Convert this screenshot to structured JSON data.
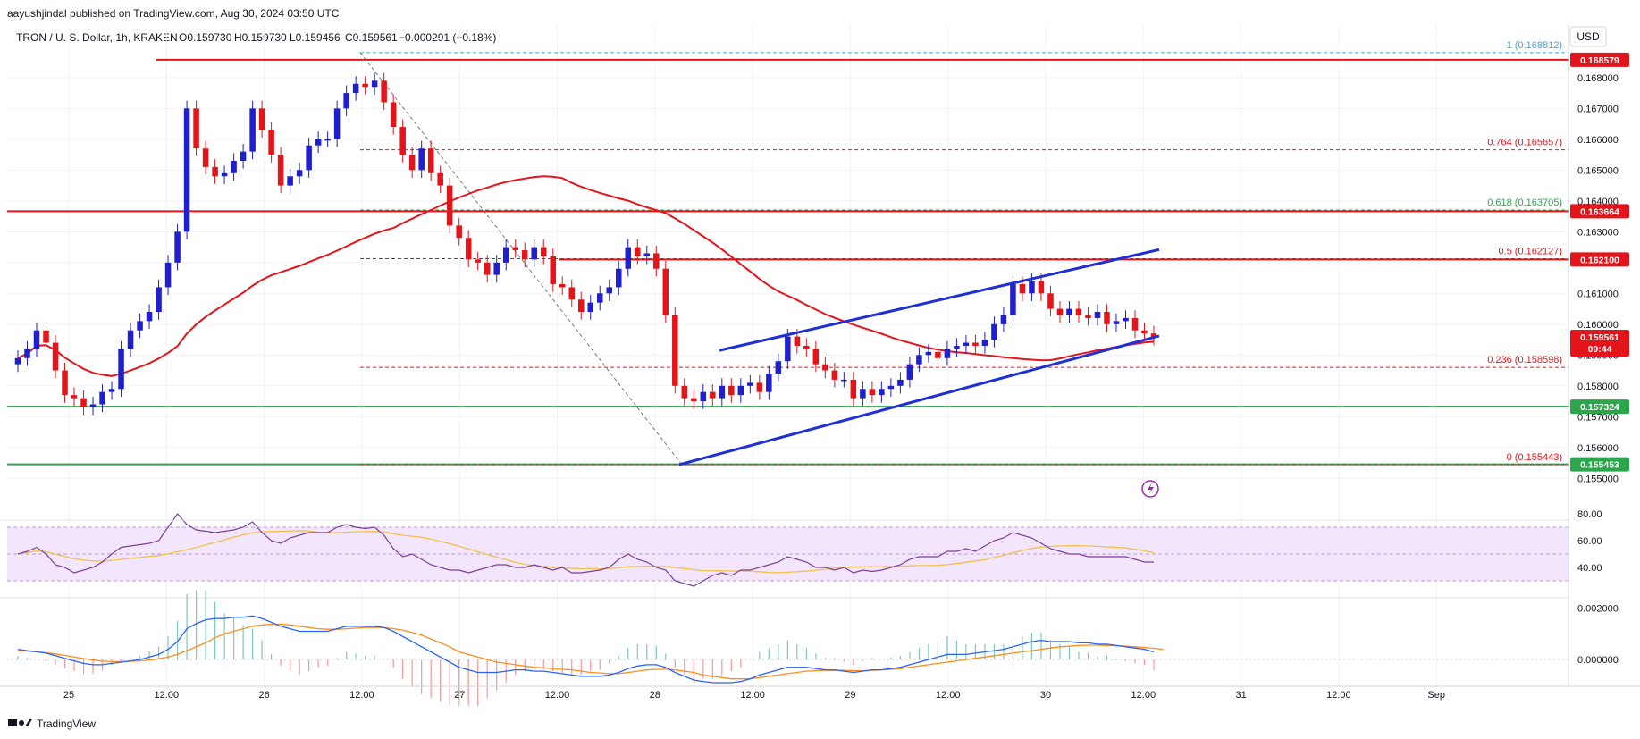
{
  "header": {
    "published": "aayushjindal published on TradingView.com, Aug 30, 2024 03:50 UTC",
    "symbol": "TRON / U. S. Dollar, 1h, KRAKEN",
    "ohlc_o": "O0.159730",
    "ohlc_h": "H0.159730",
    "ohlc_l": "L0.159456",
    "ohlc_c": "C0.159561",
    "change": "−0.000291 (−0.18%)"
  },
  "currency": "USD",
  "footer_brand": "TradingView",
  "colors": {
    "bull": "#1f1fcc",
    "bear": "#e3141a",
    "ma": "#e3141a",
    "support": "#2ca54c",
    "resistance": "#e3141a",
    "channel": "#1f2fd6",
    "rsi": "#7b3f9a",
    "rsi_ma": "#f2c14e",
    "macd": "#2962ff",
    "signal": "#ff8c1a"
  },
  "chart_data": [
    {
      "type": "candlestick",
      "title": "TRON / U. S. Dollar, 1h, KRAKEN",
      "ylim": [
        0.1544,
        0.1693
      ],
      "y_ticks": [
        "0.155000",
        "0.156000",
        "0.157000",
        "0.158000",
        "0.159000",
        "0.160000",
        "0.161000",
        "0.162000",
        "0.163000",
        "0.164000",
        "0.165000",
        "0.166000",
        "0.167000",
        "0.168000"
      ],
      "x_ticks": [
        "25",
        "12:00",
        "26",
        "12:00",
        "27",
        "12:00",
        "28",
        "12:00",
        "29",
        "12:00",
        "30",
        "12:00",
        "31",
        "12:00",
        "Sep"
      ],
      "candle_closes": [
        0.1589,
        0.1592,
        0.1598,
        0.1594,
        0.1585,
        0.1577,
        0.1576,
        0.1573,
        0.1574,
        0.1578,
        0.1579,
        0.1592,
        0.1598,
        0.1601,
        0.1604,
        0.1612,
        0.162,
        0.163,
        0.167,
        0.1657,
        0.1651,
        0.1648,
        0.1649,
        0.1653,
        0.1656,
        0.167,
        0.1663,
        0.1655,
        0.1645,
        0.1648,
        0.165,
        0.1658,
        0.166,
        0.166,
        0.167,
        0.1675,
        0.1678,
        0.1677,
        0.1679,
        0.1672,
        0.1664,
        0.1655,
        0.165,
        0.1657,
        0.1649,
        0.1645,
        0.1632,
        0.1628,
        0.1621,
        0.162,
        0.1616,
        0.162,
        0.1625,
        0.1624,
        0.1621,
        0.1625,
        0.1622,
        0.1613,
        0.1612,
        0.1608,
        0.1604,
        0.1607,
        0.161,
        0.1612,
        0.1618,
        0.1625,
        0.1622,
        0.1623,
        0.1618,
        0.1603,
        0.158,
        0.1576,
        0.1575,
        0.1578,
        0.1576,
        0.158,
        0.1577,
        0.158,
        0.1581,
        0.1578,
        0.1584,
        0.1588,
        0.1596,
        0.1593,
        0.1592,
        0.1587,
        0.1585,
        0.1582,
        0.1582,
        0.1576,
        0.1579,
        0.1577,
        0.1579,
        0.158,
        0.1582,
        0.1587,
        0.159,
        0.1591,
        0.1589,
        0.1592,
        0.1593,
        0.1594,
        0.1593,
        0.1595,
        0.16,
        0.1603,
        0.1613,
        0.161,
        0.1614,
        0.161,
        0.1605,
        0.1603,
        0.1605,
        0.1603,
        0.1602,
        0.1604,
        0.16,
        0.1601,
        0.1602,
        0.1598,
        0.1597,
        0.15956
      ],
      "last_price": "0.159561",
      "countdown": "09:44",
      "ma_label": "moving average",
      "fib_levels": [
        {
          "label": "1 (0.168812)",
          "value": 0.168812
        },
        {
          "label": "0.764 (0.165657)",
          "value": 0.165657
        },
        {
          "label": "0.618 (0.163705)",
          "value": 0.163705
        },
        {
          "label": "0.5 (0.162127)",
          "value": 0.162127
        },
        {
          "label": "0.236 (0.158598)",
          "value": 0.158598
        },
        {
          "label": "0 (0.155443)",
          "value": 0.155443
        }
      ],
      "horizontal_levels": [
        {
          "value": 0.168579,
          "label": "0.168579",
          "kind": "resistance"
        },
        {
          "value": 0.163664,
          "label": "0.163664",
          "kind": "resistance"
        },
        {
          "value": 0.1621,
          "label": "0.162100",
          "kind": "resistance"
        },
        {
          "value": 0.157324,
          "label": "0.157324",
          "kind": "support"
        },
        {
          "value": 0.155453,
          "label": "0.155453",
          "kind": "support"
        }
      ]
    },
    {
      "type": "line",
      "indicator": "rsi",
      "ylim": [
        20,
        90
      ],
      "y_ticks": [
        "40.00",
        "60.00",
        "80.00"
      ],
      "band": [
        30,
        70
      ],
      "values": [
        50,
        52,
        55,
        50,
        42,
        40,
        36,
        38,
        40,
        44,
        50,
        55,
        56,
        57,
        58,
        60,
        70,
        80,
        72,
        68,
        67,
        66,
        67,
        68,
        70,
        74,
        66,
        60,
        58,
        62,
        64,
        66,
        66,
        66,
        70,
        72,
        70,
        69,
        70,
        64,
        54,
        48,
        50,
        46,
        42,
        40,
        38,
        38,
        36,
        38,
        40,
        42,
        42,
        40,
        40,
        42,
        40,
        38,
        40,
        36,
        36,
        37,
        38,
        40,
        46,
        50,
        46,
        44,
        40,
        38,
        30,
        28,
        26,
        30,
        34,
        36,
        34,
        38,
        38,
        40,
        42,
        44,
        48,
        46,
        44,
        40,
        40,
        38,
        40,
        36,
        38,
        37,
        38,
        40,
        42,
        46,
        48,
        48,
        48,
        52,
        52,
        54,
        52,
        56,
        60,
        62,
        66,
        64,
        62,
        58,
        54,
        52,
        50,
        50,
        48,
        48,
        48,
        48,
        48,
        46,
        44,
        44
      ]
    },
    {
      "type": "line",
      "indicator": "macd",
      "ylim": [
        -0.0009,
        0.0023
      ],
      "y_ticks": [
        "0.000000",
        "0.002000"
      ],
      "macd": [
        0.0004,
        0.00035,
        0.0003,
        0.00025,
        0.00015,
        5e-05,
        -5e-05,
        -0.00015,
        -0.0002,
        -0.0002,
        -0.00015,
        -0.0001,
        -5e-05,
        0.0,
        0.0001,
        0.0002,
        0.0004,
        0.0007,
        0.0012,
        0.0014,
        0.00155,
        0.0016,
        0.0016,
        0.00165,
        0.00165,
        0.0017,
        0.0016,
        0.00145,
        0.0013,
        0.0012,
        0.0011,
        0.0011,
        0.0011,
        0.0011,
        0.0012,
        0.0013,
        0.0013,
        0.0013,
        0.0013,
        0.00125,
        0.0011,
        0.0009,
        0.0007,
        0.0005,
        0.0003,
        0.0001,
        -0.0001,
        -0.0003,
        -0.0004,
        -0.0005,
        -0.0005,
        -0.0005,
        -0.00045,
        -0.0004,
        -0.0004,
        -0.00045,
        -0.00045,
        -0.0005,
        -0.00055,
        -0.0006,
        -0.00065,
        -0.00065,
        -0.00065,
        -0.0006,
        -0.0005,
        -0.00035,
        -0.00025,
        -0.0002,
        -0.0002,
        -0.0003,
        -0.0005,
        -0.00065,
        -0.0008,
        -0.00085,
        -0.0009,
        -0.0009,
        -0.0009,
        -0.00085,
        -0.00075,
        -0.0006,
        -0.0005,
        -0.0004,
        -0.0003,
        -0.0003,
        -0.0003,
        -0.00035,
        -0.0004,
        -0.0004,
        -0.00045,
        -0.0005,
        -0.00045,
        -0.0004,
        -0.0004,
        -0.00035,
        -0.0003,
        -0.0002,
        -0.0001,
        0.0,
        0.0001,
        0.0002,
        0.0002,
        0.0002,
        0.00025,
        0.0003,
        0.00035,
        0.0004,
        0.0005,
        0.0006,
        0.0007,
        0.00075,
        0.0007,
        0.0007,
        0.0007,
        0.00065,
        0.00065,
        0.0006,
        0.0006,
        0.00055,
        0.0005,
        0.00045,
        0.0004,
        0.0003
      ],
      "signal": [
        0.00035,
        0.00033,
        0.0003,
        0.00027,
        0.00022,
        0.00016,
        0.0001,
        4e-05,
        -2e-05,
        -6e-05,
        -8e-05,
        -8e-05,
        -7e-05,
        -5e-05,
        -2e-05,
        3e-05,
        0.0001,
        0.0002,
        0.00035,
        0.0005,
        0.00065,
        0.00085,
        0.001,
        0.0011,
        0.0012,
        0.0013,
        0.00135,
        0.00138,
        0.00138,
        0.00135,
        0.0013,
        0.00125,
        0.0012,
        0.00118,
        0.00118,
        0.0012,
        0.00122,
        0.00125,
        0.00125,
        0.00125,
        0.0012,
        0.00115,
        0.00105,
        0.00095,
        0.0008,
        0.00065,
        0.0005,
        0.0003,
        0.0002,
        0.0001,
        0.0,
        -0.0001,
        -0.00015,
        -0.0002,
        -0.00025,
        -0.0003,
        -0.00032,
        -0.00035,
        -0.00038,
        -0.0004,
        -0.00045,
        -0.0005,
        -0.00052,
        -0.00055,
        -0.00055,
        -0.0005,
        -0.00045,
        -0.0004,
        -0.00038,
        -0.00038,
        -0.0004,
        -0.00045,
        -0.0005,
        -0.0006,
        -0.00065,
        -0.0007,
        -0.00075,
        -0.00075,
        -0.00075,
        -0.0007,
        -0.00065,
        -0.0006,
        -0.00055,
        -0.0005,
        -0.00045,
        -0.00043,
        -0.00042,
        -0.00042,
        -0.00042,
        -0.00043,
        -0.00043,
        -0.00042,
        -0.0004,
        -0.00038,
        -0.00035,
        -0.0003,
        -0.00025,
        -0.0002,
        -0.00015,
        -0.0001,
        -5e-05,
        0.0,
        5e-05,
        0.0001,
        0.00015,
        0.0002,
        0.00025,
        0.0003,
        0.00035,
        0.0004,
        0.00045,
        0.0005,
        0.00052,
        0.00055,
        0.00056,
        0.00056,
        0.00055,
        0.00054,
        0.00052,
        0.0005,
        0.00047,
        0.00044,
        0.0004
      ]
    }
  ]
}
